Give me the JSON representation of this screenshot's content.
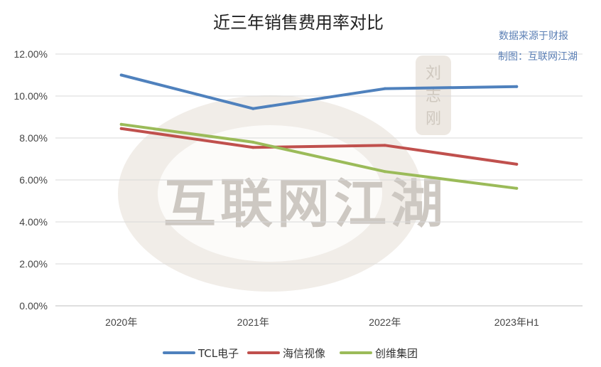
{
  "chart_data": {
    "type": "line",
    "title": "近三年销售费用率对比",
    "source_lines": [
      "数据来源于财报",
      "制图：互联网江湖"
    ],
    "watermark": "互联网江湖",
    "seal": "刘志刚",
    "categories": [
      "2020年",
      "2021年",
      "2022年",
      "2023年H1"
    ],
    "y_ticks": [
      "0.00%",
      "2.00%",
      "4.00%",
      "6.00%",
      "8.00%",
      "10.00%",
      "12.00%"
    ],
    "ylim": [
      0,
      12
    ],
    "y_unit": "%",
    "grid": true,
    "legend_position": "bottom",
    "series": [
      {
        "name": "TCL电子",
        "color": "#4f81bd",
        "values": [
          11.0,
          9.4,
          10.35,
          10.45
        ]
      },
      {
        "name": "海信视像",
        "color": "#c0504d",
        "values": [
          8.45,
          7.55,
          7.65,
          6.75
        ]
      },
      {
        "name": "创维集团",
        "color": "#9bbb59",
        "values": [
          8.65,
          7.8,
          6.4,
          5.6
        ]
      }
    ]
  }
}
